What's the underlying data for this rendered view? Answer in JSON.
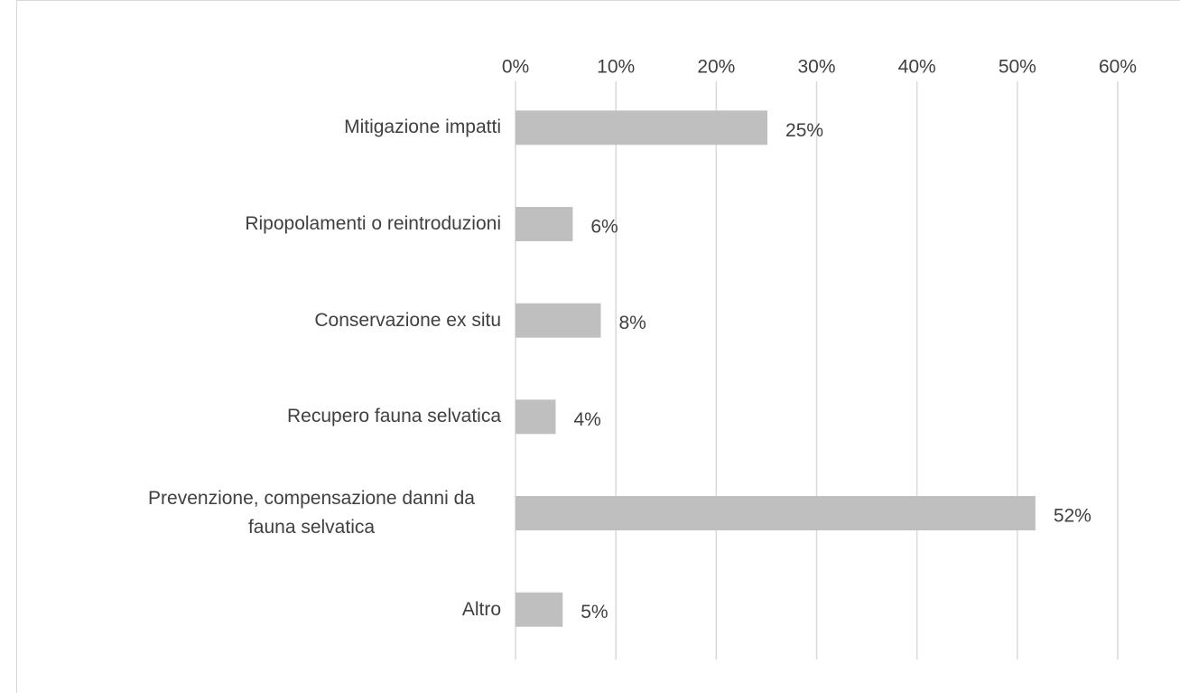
{
  "chart_data": {
    "type": "hbar",
    "categories": [
      "Mitigazione impatti",
      "Ripopolamenti o reintroduzioni",
      "Conservazione ex situ",
      "Recupero fauna selvatica",
      "Prevenzione, compensazione danni da fauna selvatica",
      "Altro"
    ],
    "values": [
      25.1,
      5.7,
      8.5,
      4.0,
      51.8,
      4.7
    ],
    "value_labels": [
      "25%",
      "6%",
      "8%",
      "4%",
      "52%",
      "5%"
    ],
    "color": "#bfbfbf",
    "xlim": [
      0,
      60
    ],
    "xticks": [
      {
        "value": 0,
        "label": "0%"
      },
      {
        "value": 10,
        "label": "10%"
      },
      {
        "value": 20,
        "label": "20%"
      },
      {
        "value": 30,
        "label": "30%"
      },
      {
        "value": 40,
        "label": "40%"
      },
      {
        "value": 50,
        "label": "50%"
      },
      {
        "value": 60,
        "label": "60%"
      }
    ],
    "grid": true
  }
}
